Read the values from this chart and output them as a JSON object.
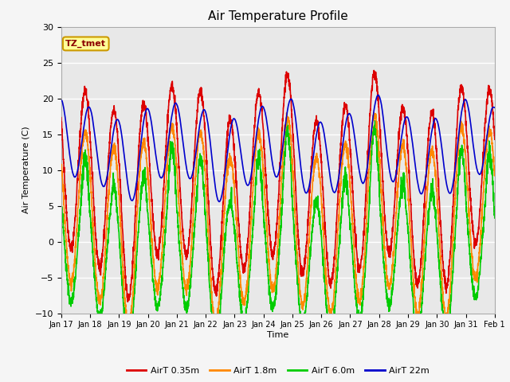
{
  "title": "Air Temperature Profile",
  "ylabel": "Air Temperature (C)",
  "xlabel": "Time",
  "ylim": [
    -10,
    30
  ],
  "xlim": [
    0,
    360
  ],
  "annotation": "TZ_tmet",
  "bg_color": "#e8e8e8",
  "grid_color": "#ffffff",
  "tick_labels": [
    "Jan 17",
    "Jan 18",
    "Jan 19",
    "Jan 20",
    "Jan 21",
    "Jan 22",
    "Jan 23",
    "Jan 24",
    "Jan 25",
    "Jan 26",
    "Jan 27",
    "Jan 28",
    "Jan 29",
    "Jan 30",
    "Jan 31",
    "Feb 1"
  ],
  "tick_positions": [
    0,
    24,
    48,
    72,
    96,
    120,
    144,
    168,
    192,
    216,
    240,
    264,
    288,
    312,
    336,
    360
  ],
  "series_names": [
    "AirT 0.35m",
    "AirT 1.8m",
    "AirT 6.0m",
    "AirT 22m"
  ],
  "series_colors": [
    "#dd0000",
    "#ff8800",
    "#00cc00",
    "#0000cc"
  ],
  "series_lw": [
    1.2,
    1.2,
    1.2,
    1.2
  ]
}
